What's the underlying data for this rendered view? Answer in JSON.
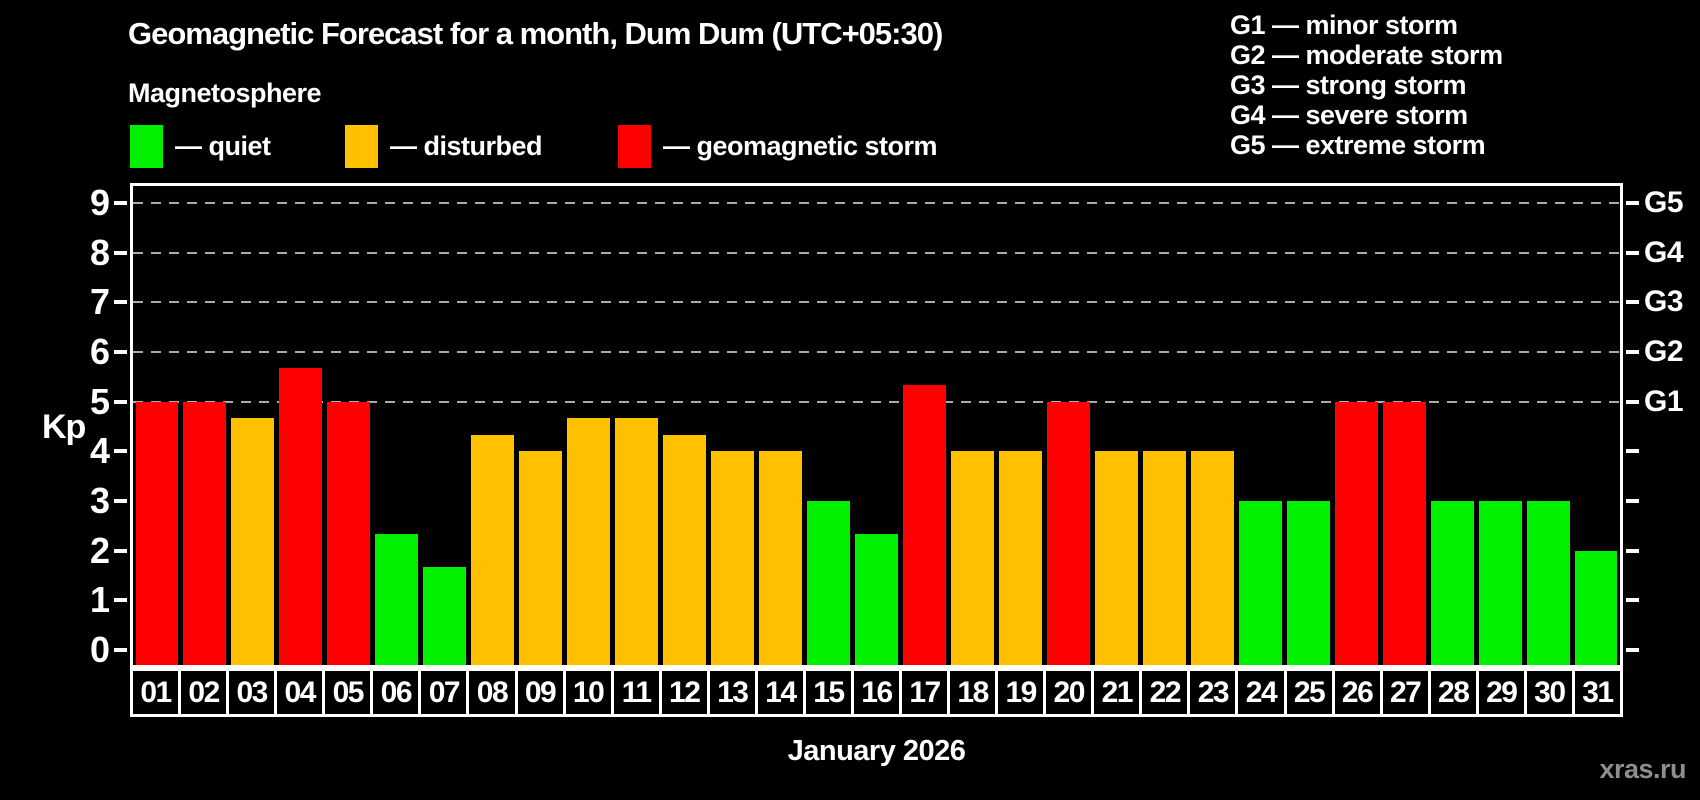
{
  "header": {
    "title": "Geomagnetic Forecast for a month, Dum Dum (UTC+05:30)",
    "subtitle": "Magnetosphere"
  },
  "legend": {
    "items": [
      {
        "key": "quiet",
        "label": "— quiet",
        "color": "#00f000"
      },
      {
        "key": "disturbed",
        "label": "— disturbed",
        "color": "#ffc000"
      },
      {
        "key": "storm",
        "label": "— geomagnetic storm",
        "color": "#ff0000"
      }
    ]
  },
  "g_legend": {
    "lines": [
      "G1 — minor storm",
      "G2 — moderate storm",
      "G3 — strong storm",
      "G4 — severe storm",
      "G5 — extreme storm"
    ]
  },
  "footer": {
    "watermark": "xras.ru"
  },
  "chart_data": {
    "type": "bar",
    "title": "Geomagnetic Forecast for a month, Dum Dum (UTC+05:30)",
    "subtitle": "Magnetosphere",
    "xlabel": "January 2026",
    "ylabel": "Kp",
    "ylim": [
      0,
      9
    ],
    "y_ticks": [
      0,
      1,
      2,
      3,
      4,
      5,
      6,
      7,
      8,
      9
    ],
    "gridlines_at_kp": [
      5,
      6,
      7,
      8,
      9
    ],
    "grid": "dashed gray horizontal lines at Kp 5–9 only; short ticks at every integer on both axes",
    "right_axis": {
      "labels": [
        "G1",
        "G2",
        "G3",
        "G4",
        "G5"
      ],
      "at_kp": [
        5,
        6,
        7,
        8,
        9
      ]
    },
    "legend_position": "top-left",
    "categories": [
      "01",
      "02",
      "03",
      "04",
      "05",
      "06",
      "07",
      "08",
      "09",
      "10",
      "11",
      "12",
      "13",
      "14",
      "15",
      "16",
      "17",
      "18",
      "19",
      "20",
      "21",
      "22",
      "23",
      "24",
      "25",
      "26",
      "27",
      "28",
      "29",
      "30",
      "31"
    ],
    "values": [
      5,
      5,
      4.67,
      5.67,
      5,
      2.33,
      1.67,
      4.33,
      4,
      4.67,
      4.67,
      4.33,
      4,
      4,
      3,
      2.33,
      5.33,
      4,
      4,
      5,
      4,
      4,
      4,
      3,
      3,
      5,
      5,
      3,
      3,
      3,
      2
    ],
    "statuses": [
      "storm",
      "storm",
      "disturbed",
      "storm",
      "storm",
      "quiet",
      "quiet",
      "disturbed",
      "disturbed",
      "disturbed",
      "disturbed",
      "disturbed",
      "disturbed",
      "disturbed",
      "quiet",
      "quiet",
      "storm",
      "disturbed",
      "disturbed",
      "storm",
      "disturbed",
      "disturbed",
      "disturbed",
      "quiet",
      "quiet",
      "storm",
      "storm",
      "quiet",
      "quiet",
      "quiet",
      "quiet"
    ],
    "status_colors": {
      "quiet": "#00f000",
      "disturbed": "#ffc000",
      "storm": "#ff0000"
    }
  }
}
